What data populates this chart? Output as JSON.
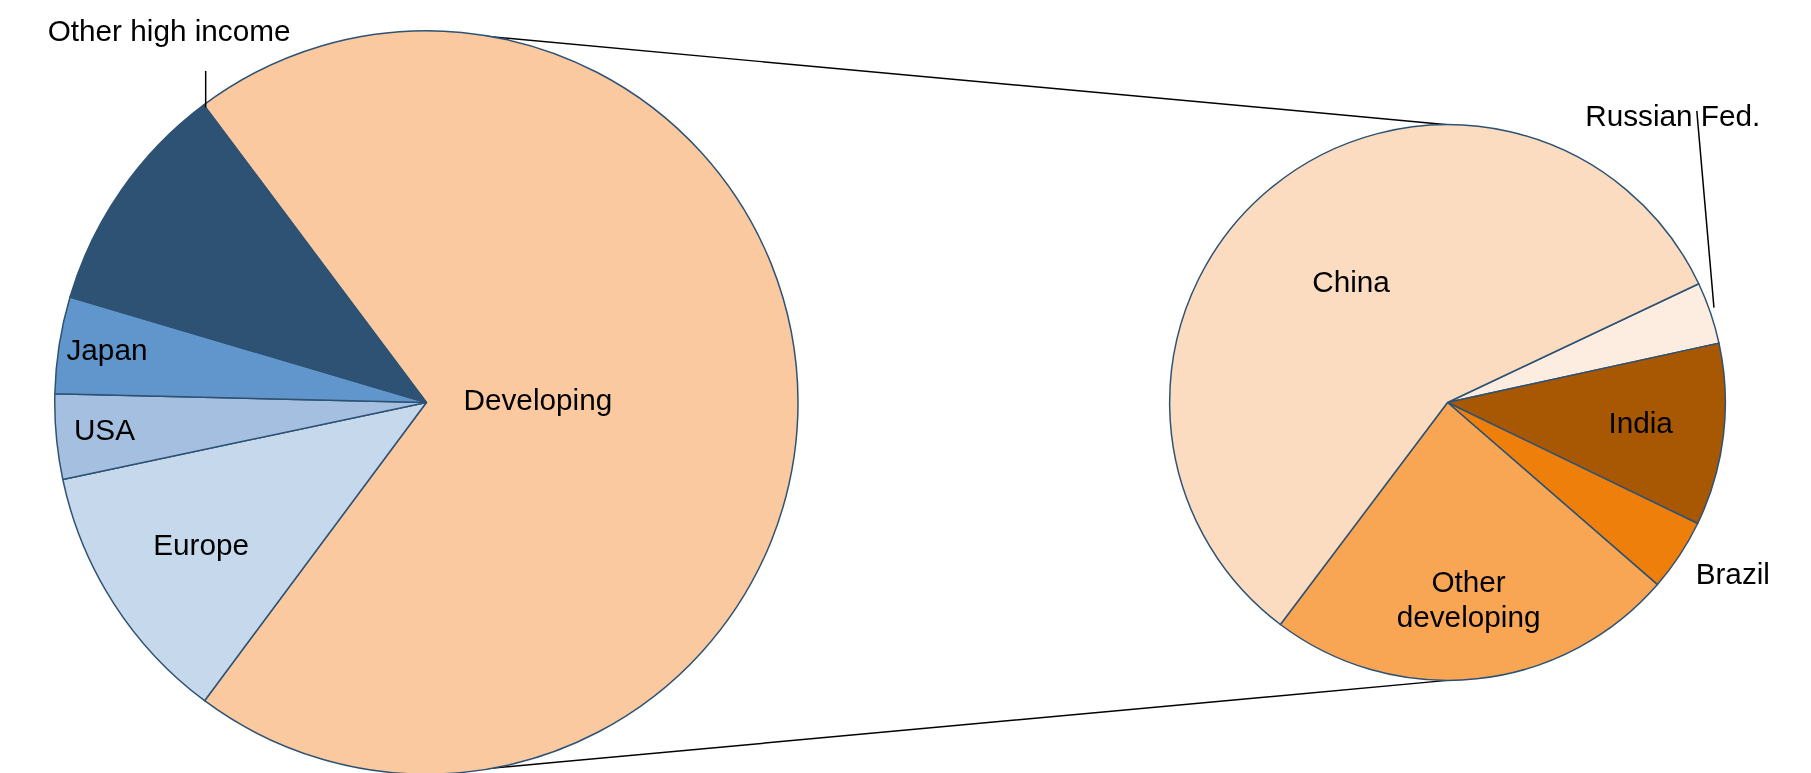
{
  "chart_data": [
    {
      "type": "pie",
      "categories": [
        "Developing",
        "Europe",
        "USA",
        "Japan",
        "Other high income"
      ],
      "values": [
        70.4,
        11.5,
        3.7,
        4.2,
        10.2
      ],
      "colors": [
        "#fbc9a0",
        "#c5d8ec",
        "#a4bfdf",
        "#6096cb",
        "#2e5274"
      ]
    },
    {
      "type": "pie",
      "categories": [
        "Russian Fed.",
        "India",
        "Brazil",
        "Other developing",
        "China"
      ],
      "values": [
        3.6,
        10.6,
        4.2,
        23.9,
        57.7
      ],
      "colors": [
        "#fdece0",
        "#a85703",
        "#ed7f0a",
        "#f8a654",
        "#fbdcc0"
      ]
    }
  ]
}
